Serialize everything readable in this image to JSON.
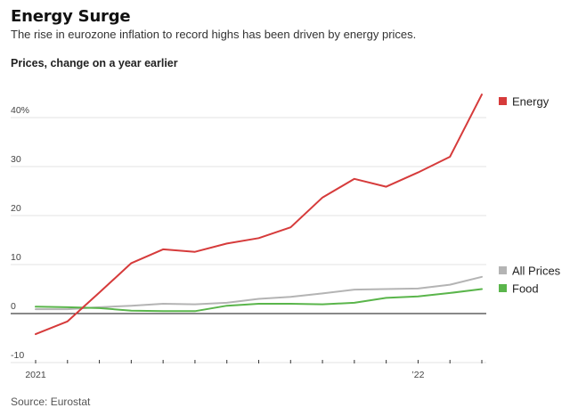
{
  "header": {
    "title": "Energy Surge",
    "subtitle": "The rise in eurozone inflation to record highs has been driven by energy prices."
  },
  "panel_title": "Prices, change on a year earlier",
  "source": "Source: Eurostat",
  "chart_data": {
    "type": "line",
    "title": "Energy Surge",
    "subtitle": "The rise in eurozone inflation to record highs has been driven by energy prices.",
    "ylabel": "Prices, change on a year earlier",
    "xlabel": "",
    "x": [
      "2021-01",
      "2021-02",
      "2021-03",
      "2021-04",
      "2021-05",
      "2021-06",
      "2021-07",
      "2021-08",
      "2021-09",
      "2021-10",
      "2021-11",
      "2021-12",
      "2022-01",
      "2022-02",
      "2022-03"
    ],
    "x_tick_labels": [
      {
        "x": "2021-01",
        "label": "2021"
      },
      {
        "x": "2022-01",
        "label": "’22"
      }
    ],
    "y_ticks": [
      {
        "value": -10,
        "label": "-10"
      },
      {
        "value": 0,
        "label": "0"
      },
      {
        "value": 10,
        "label": "10"
      },
      {
        "value": 20,
        "label": "20"
      },
      {
        "value": 30,
        "label": "30"
      },
      {
        "value": 40,
        "label": "40%"
      }
    ],
    "ylim": [
      -10,
      45
    ],
    "grid": true,
    "legend_position": "right",
    "series": [
      {
        "name": "Energy",
        "color": "#d63b3b",
        "values": [
          -4.2,
          -1.6,
          4.3,
          10.3,
          13.1,
          12.6,
          14.3,
          15.4,
          17.6,
          23.7,
          27.5,
          25.9,
          28.8,
          32.0,
          44.7
        ]
      },
      {
        "name": "All Prices",
        "color": "#b4b4b4",
        "values": [
          0.9,
          0.9,
          1.3,
          1.6,
          2.0,
          1.9,
          2.2,
          3.0,
          3.4,
          4.1,
          4.9,
          5.0,
          5.1,
          5.9,
          7.5
        ]
      },
      {
        "name": "Food",
        "color": "#5ab54b",
        "values": [
          1.4,
          1.3,
          1.1,
          0.6,
          0.5,
          0.5,
          1.6,
          2.0,
          2.0,
          1.9,
          2.2,
          3.2,
          3.5,
          4.2,
          5.0
        ]
      }
    ]
  }
}
